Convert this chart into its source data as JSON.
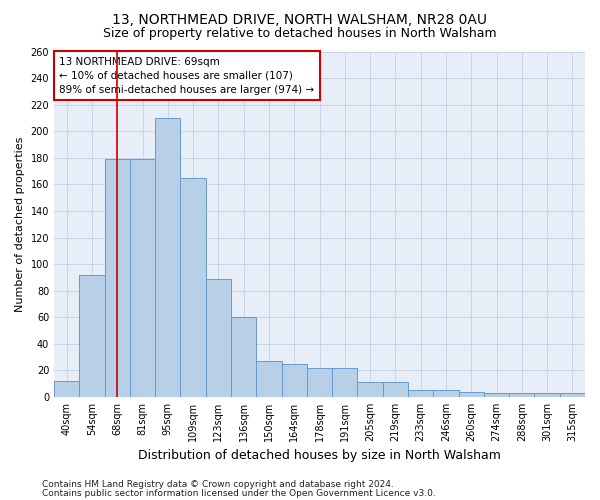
{
  "title1": "13, NORTHMEAD DRIVE, NORTH WALSHAM, NR28 0AU",
  "title2": "Size of property relative to detached houses in North Walsham",
  "xlabel": "Distribution of detached houses by size in North Walsham",
  "ylabel": "Number of detached properties",
  "categories": [
    "40sqm",
    "54sqm",
    "68sqm",
    "81sqm",
    "95sqm",
    "109sqm",
    "123sqm",
    "136sqm",
    "150sqm",
    "164sqm",
    "178sqm",
    "191sqm",
    "205sqm",
    "219sqm",
    "233sqm",
    "246sqm",
    "260sqm",
    "274sqm",
    "288sqm",
    "301sqm",
    "315sqm"
  ],
  "values": [
    12,
    92,
    179,
    179,
    210,
    165,
    89,
    60,
    27,
    25,
    22,
    22,
    11,
    11,
    5,
    5,
    4,
    3,
    3,
    3,
    3
  ],
  "bar_color": "#b8cfe8",
  "bar_edge_color": "#6699cc",
  "property_line_x": 2.0,
  "property_line_color": "#cc0000",
  "annotation_line1": "13 NORTHMEAD DRIVE: 69sqm",
  "annotation_line2": "← 10% of detached houses are smaller (107)",
  "annotation_line3": "89% of semi-detached houses are larger (974) →",
  "annotation_box_color": "#cc0000",
  "ylim": [
    0,
    260
  ],
  "yticks": [
    0,
    20,
    40,
    60,
    80,
    100,
    120,
    140,
    160,
    180,
    200,
    220,
    240,
    260
  ],
  "grid_color": "#c8d4e8",
  "bg_color": "#e8eef8",
  "footer1": "Contains HM Land Registry data © Crown copyright and database right 2024.",
  "footer2": "Contains public sector information licensed under the Open Government Licence v3.0.",
  "title1_fontsize": 10,
  "title2_fontsize": 9,
  "xlabel_fontsize": 9,
  "ylabel_fontsize": 8,
  "tick_fontsize": 7,
  "ann_fontsize": 7.5,
  "footer_fontsize": 6.5
}
